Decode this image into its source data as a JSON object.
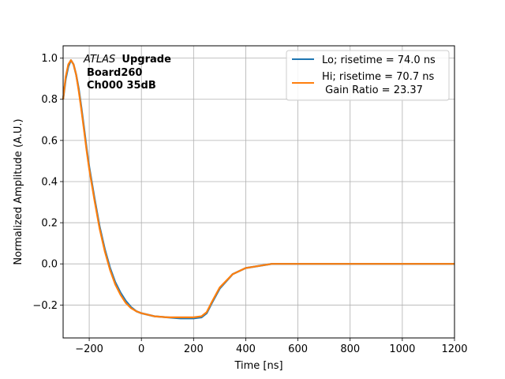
{
  "chart_data": {
    "type": "line",
    "title": "",
    "xlabel": "Time [ns]",
    "ylabel": "Normalized Amplitude (A.U.)",
    "xlim": [
      -300,
      1200
    ],
    "ylim": [
      -0.36,
      1.06
    ],
    "xticks": [
      -200,
      0,
      200,
      400,
      600,
      800,
      1000,
      1200
    ],
    "xtick_labels": [
      "−200",
      "0",
      "200",
      "400",
      "600",
      "800",
      "1000",
      "1200"
    ],
    "yticks": [
      -0.2,
      0.0,
      0.2,
      0.4,
      0.6,
      0.8,
      1.0
    ],
    "ytick_labels": [
      "−0.2",
      "0.0",
      "0.2",
      "0.4",
      "0.6",
      "0.8",
      "1.0"
    ],
    "grid": true,
    "legend_position": "top-right",
    "annotation": {
      "atlas": "ATLAS",
      "upgrade": "Upgrade",
      "line2": "Board260",
      "line3": "Ch000 35dB"
    },
    "series": [
      {
        "name": "Lo; risetime = 74.0 ns",
        "color": "#1f77b4",
        "x": [
          -300,
          -290,
          -280,
          -270,
          -260,
          -250,
          -240,
          -230,
          -220,
          -210,
          -200,
          -180,
          -160,
          -140,
          -120,
          -100,
          -80,
          -60,
          -40,
          -20,
          0,
          50,
          100,
          150,
          200,
          230,
          250,
          270,
          300,
          350,
          400,
          450,
          500,
          600,
          700,
          800,
          900,
          1000,
          1100,
          1200
        ],
        "y": [
          0.8,
          0.9,
          0.96,
          0.99,
          0.97,
          0.92,
          0.85,
          0.76,
          0.66,
          0.56,
          0.47,
          0.32,
          0.18,
          0.07,
          -0.02,
          -0.09,
          -0.14,
          -0.18,
          -0.21,
          -0.23,
          -0.24,
          -0.255,
          -0.26,
          -0.265,
          -0.265,
          -0.26,
          -0.24,
          -0.19,
          -0.12,
          -0.05,
          -0.02,
          -0.01,
          0.0,
          0.0,
          0.0,
          0.0,
          0.0,
          0.0,
          0.0,
          0.0
        ]
      },
      {
        "name": "Hi; risetime = 70.7 ns",
        "name_line2": " Gain Ratio = 23.37",
        "color": "#ff7f0e",
        "x": [
          -300,
          -290,
          -280,
          -270,
          -260,
          -250,
          -240,
          -230,
          -220,
          -210,
          -200,
          -180,
          -160,
          -140,
          -120,
          -100,
          -80,
          -60,
          -40,
          -20,
          0,
          50,
          100,
          150,
          200,
          230,
          250,
          270,
          300,
          350,
          400,
          450,
          500,
          600,
          700,
          800,
          900,
          1000,
          1100,
          1200
        ],
        "y": [
          0.8,
          0.91,
          0.97,
          0.99,
          0.97,
          0.92,
          0.84,
          0.75,
          0.65,
          0.55,
          0.46,
          0.31,
          0.17,
          0.06,
          -0.03,
          -0.1,
          -0.15,
          -0.19,
          -0.215,
          -0.23,
          -0.24,
          -0.255,
          -0.26,
          -0.26,
          -0.26,
          -0.255,
          -0.235,
          -0.185,
          -0.115,
          -0.05,
          -0.02,
          -0.01,
          0.0,
          0.0,
          0.0,
          0.0,
          0.0,
          0.0,
          0.0,
          0.0
        ]
      }
    ]
  }
}
